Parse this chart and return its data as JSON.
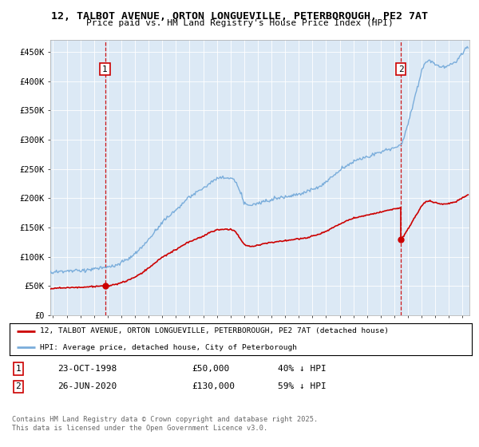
{
  "title_line1": "12, TALBOT AVENUE, ORTON LONGUEVILLE, PETERBOROUGH, PE2 7AT",
  "title_line2": "Price paid vs. HM Land Registry's House Price Index (HPI)",
  "legend_line1": "12, TALBOT AVENUE, ORTON LONGUEVILLE, PETERBOROUGH, PE2 7AT (detached house)",
  "legend_line2": "HPI: Average price, detached house, City of Peterborough",
  "annotation1_label": "1",
  "annotation1_date": "23-OCT-1998",
  "annotation1_price": "£50,000",
  "annotation1_hpi": "40% ↓ HPI",
  "annotation2_label": "2",
  "annotation2_date": "26-JUN-2020",
  "annotation2_price": "£130,000",
  "annotation2_hpi": "59% ↓ HPI",
  "footer": "Contains HM Land Registry data © Crown copyright and database right 2025.\nThis data is licensed under the Open Government Licence v3.0.",
  "sale1_year": 1998.81,
  "sale1_price": 50000,
  "sale2_year": 2020.48,
  "sale2_price": 130000,
  "hpi_color": "#7aaddb",
  "sold_color": "#cc0000",
  "plot_bg_color": "#dce9f5",
  "ylim": [
    0,
    470000
  ],
  "xlim_start": 1994.8,
  "xlim_end": 2025.5
}
